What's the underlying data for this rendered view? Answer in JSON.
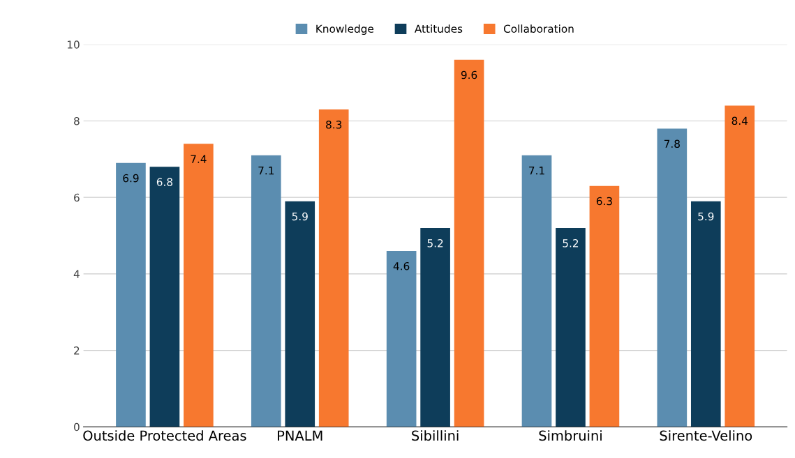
{
  "chart_data": {
    "type": "bar",
    "categories": [
      "Outside Protected Areas",
      "PNALM",
      "Sibillini",
      "Simbruini",
      "Sirente-Velino"
    ],
    "series": [
      {
        "name": "Knowledge",
        "color": "#5b8db0",
        "values": [
          6.9,
          7.1,
          4.6,
          7.1,
          7.8
        ]
      },
      {
        "name": "Attitudes",
        "color": "#0e3d5a",
        "values": [
          6.8,
          5.9,
          5.2,
          5.2,
          5.9
        ]
      },
      {
        "name": "Collaboration",
        "color": "#f7782f",
        "values": [
          7.4,
          8.3,
          9.6,
          6.3,
          8.4
        ]
      }
    ],
    "ylim": [
      0,
      10
    ],
    "yticks": [
      0,
      2,
      4,
      6,
      8,
      10
    ],
    "grid": "y",
    "legend": "top",
    "data_labels": true
  }
}
